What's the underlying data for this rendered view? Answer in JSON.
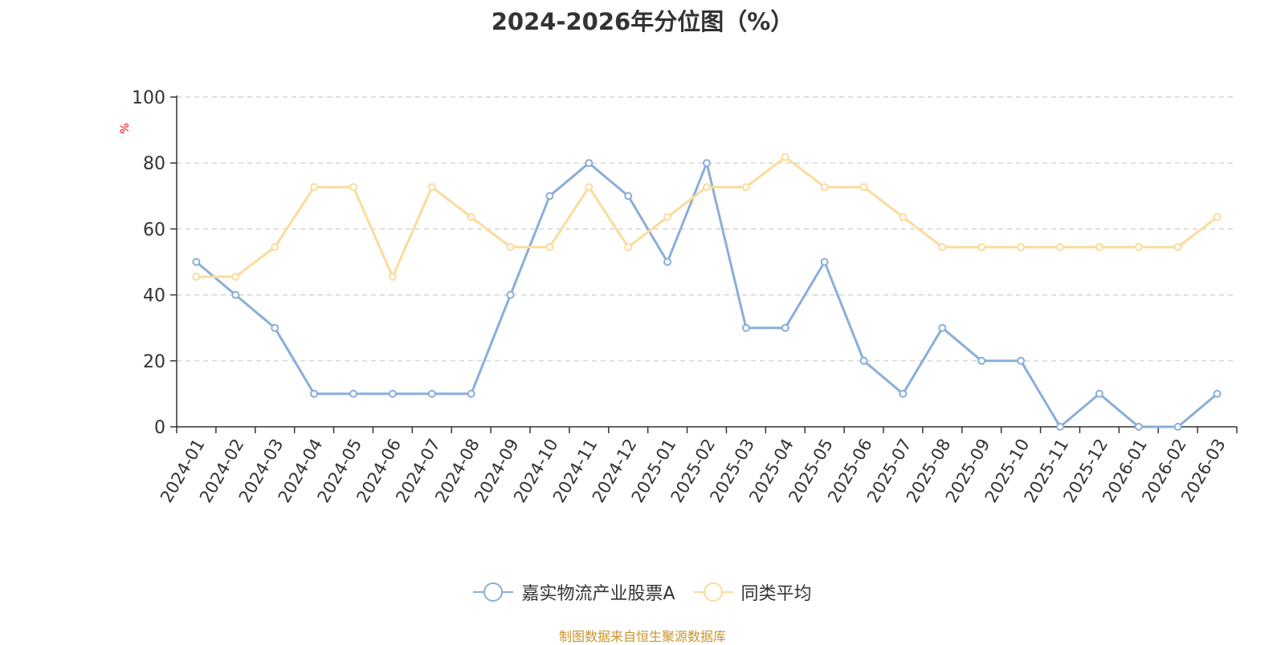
{
  "chart_data": {
    "type": "line",
    "title": "2024-2026年分位图（%）",
    "ylabel": "%",
    "ylim": [
      0,
      100
    ],
    "yticks": [
      0,
      20,
      40,
      60,
      80,
      100
    ],
    "grid": true,
    "legend_position": "bottom-center",
    "categories": [
      "2024-01",
      "2024-02",
      "2024-03",
      "2024-04",
      "2024-05",
      "2024-06",
      "2024-07",
      "2024-08",
      "2024-09",
      "2024-10",
      "2024-11",
      "2024-12",
      "2025-01",
      "2025-02",
      "2025-03",
      "2025-04",
      "2025-05",
      "2025-06",
      "2025-07",
      "2025-08",
      "2025-09",
      "2025-10",
      "2025-11",
      "2025-12",
      "2026-01",
      "2026-02",
      "2026-03"
    ],
    "series": [
      {
        "name": "嘉实物流产业股票A",
        "color": "#8aaedb",
        "values": [
          50,
          40,
          30,
          10,
          10,
          10,
          10,
          10,
          40,
          70,
          80,
          70,
          50,
          80,
          30,
          30,
          50,
          20,
          10,
          30,
          20,
          20,
          0,
          10,
          0,
          0,
          10
        ]
      },
      {
        "name": "同类平均",
        "color": "#fcdb9a",
        "values": [
          45.5,
          45.5,
          54.5,
          72.7,
          72.7,
          45.5,
          72.7,
          63.6,
          54.5,
          54.5,
          72.7,
          54.5,
          63.6,
          72.7,
          72.7,
          81.8,
          72.7,
          72.7,
          63.6,
          54.5,
          54.5,
          54.5,
          54.5,
          54.5,
          54.5,
          54.5,
          63.6
        ]
      }
    ]
  },
  "source_note": "制图数据来自恒生聚源数据库"
}
